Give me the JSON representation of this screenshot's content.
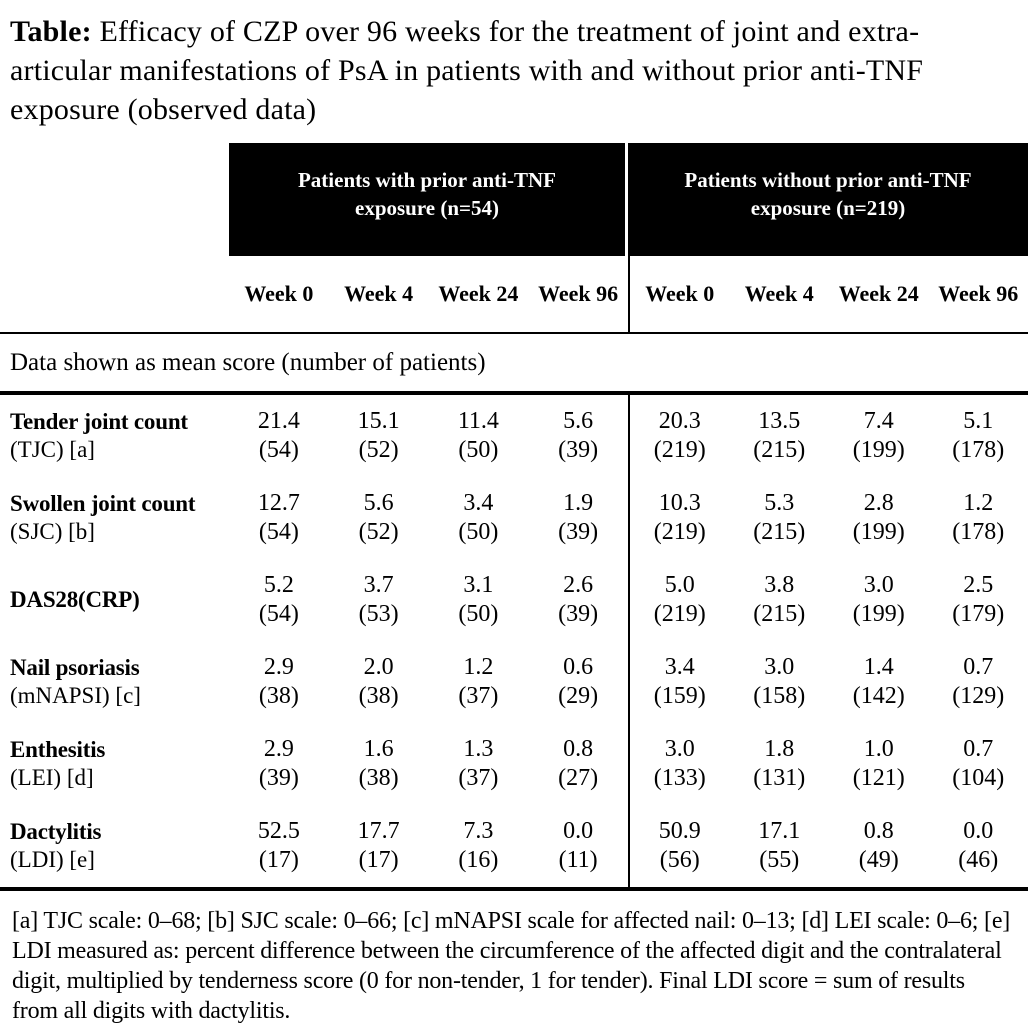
{
  "title": {
    "prefix": "Table:",
    "text": "Efficacy of CZP over 96 weeks for the treatment of joint and extra-articular manifestations of PsA in patients with and without prior anti-TNF exposure (observed data)"
  },
  "table": {
    "group_headers": [
      "Patients with prior anti-TNF exposure (n=54)",
      "Patients without prior anti-TNF exposure (n=219)"
    ],
    "week_headers": [
      "Week 0",
      "Week 4",
      "Week 24",
      "Week 96"
    ],
    "note": "Data shown as mean score (number of patients)",
    "rows": [
      {
        "label": "Tender joint count",
        "sublabel": "(TJC) [a]",
        "group1": [
          {
            "mean": "21.4",
            "n": "(54)"
          },
          {
            "mean": "15.1",
            "n": "(52)"
          },
          {
            "mean": "11.4",
            "n": "(50)"
          },
          {
            "mean": "5.6",
            "n": "(39)"
          }
        ],
        "group2": [
          {
            "mean": "20.3",
            "n": "(219)"
          },
          {
            "mean": "13.5",
            "n": "(215)"
          },
          {
            "mean": "7.4",
            "n": "(199)"
          },
          {
            "mean": "5.1",
            "n": "(178)"
          }
        ]
      },
      {
        "label": "Swollen joint count",
        "sublabel": "(SJC) [b]",
        "group1": [
          {
            "mean": "12.7",
            "n": "(54)"
          },
          {
            "mean": "5.6",
            "n": "(52)"
          },
          {
            "mean": "3.4",
            "n": "(50)"
          },
          {
            "mean": "1.9",
            "n": "(39)"
          }
        ],
        "group2": [
          {
            "mean": "10.3",
            "n": "(219)"
          },
          {
            "mean": "5.3",
            "n": "(215)"
          },
          {
            "mean": "2.8",
            "n": "(199)"
          },
          {
            "mean": "1.2",
            "n": "(178)"
          }
        ]
      },
      {
        "label": "DAS28(CRP)",
        "sublabel": "",
        "group1": [
          {
            "mean": "5.2",
            "n": "(54)"
          },
          {
            "mean": "3.7",
            "n": "(53)"
          },
          {
            "mean": "3.1",
            "n": "(50)"
          },
          {
            "mean": "2.6",
            "n": "(39)"
          }
        ],
        "group2": [
          {
            "mean": "5.0",
            "n": "(219)"
          },
          {
            "mean": "3.8",
            "n": "(215)"
          },
          {
            "mean": "3.0",
            "n": "(199)"
          },
          {
            "mean": "2.5",
            "n": "(179)"
          }
        ]
      },
      {
        "label": "Nail psoriasis",
        "sublabel": "(mNAPSI) [c]",
        "group1": [
          {
            "mean": "2.9",
            "n": "(38)"
          },
          {
            "mean": "2.0",
            "n": "(38)"
          },
          {
            "mean": "1.2",
            "n": "(37)"
          },
          {
            "mean": "0.6",
            "n": "(29)"
          }
        ],
        "group2": [
          {
            "mean": "3.4",
            "n": "(159)"
          },
          {
            "mean": "3.0",
            "n": "(158)"
          },
          {
            "mean": "1.4",
            "n": "(142)"
          },
          {
            "mean": "0.7",
            "n": "(129)"
          }
        ]
      },
      {
        "label": "Enthesitis",
        "sublabel": "(LEI) [d]",
        "group1": [
          {
            "mean": "2.9",
            "n": "(39)"
          },
          {
            "mean": "1.6",
            "n": "(38)"
          },
          {
            "mean": "1.3",
            "n": "(37)"
          },
          {
            "mean": "0.8",
            "n": "(27)"
          }
        ],
        "group2": [
          {
            "mean": "3.0",
            "n": "(133)"
          },
          {
            "mean": "1.8",
            "n": "(131)"
          },
          {
            "mean": "1.0",
            "n": "(121)"
          },
          {
            "mean": "0.7",
            "n": "(104)"
          }
        ]
      },
      {
        "label": "Dactylitis",
        "sublabel": "(LDI) [e]",
        "group1": [
          {
            "mean": "52.5",
            "n": "(17)"
          },
          {
            "mean": "17.7",
            "n": "(17)"
          },
          {
            "mean": "7.3",
            "n": "(16)"
          },
          {
            "mean": "0.0",
            "n": "(11)"
          }
        ],
        "group2": [
          {
            "mean": "50.9",
            "n": "(56)"
          },
          {
            "mean": "17.1",
            "n": "(55)"
          },
          {
            "mean": "0.8",
            "n": "(49)"
          },
          {
            "mean": "0.0",
            "n": "(46)"
          }
        ]
      }
    ],
    "footnote": "[a] TJC scale: 0–68; [b] SJC scale: 0–66; [c] mNAPSI scale for affected nail: 0–13; [d] LEI scale: 0–6; [e] LDI measured as: percent difference between the circumference of the affected digit and the contralateral digit, multiplied by tenderness score (0 for non-tender, 1 for tender). Final LDI score = sum of results from all digits with dactylitis.",
    "colors": {
      "header_bg": "#000000",
      "header_text": "#ffffff",
      "body_text": "#000000",
      "background": "#ffffff"
    }
  }
}
